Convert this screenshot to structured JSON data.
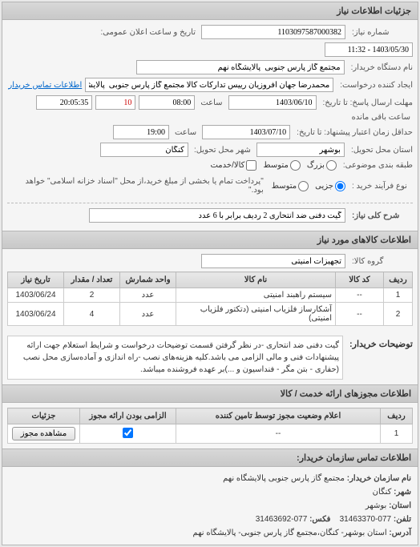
{
  "panel_title": "جزئیات اطلاعات نیاز",
  "form": {
    "req_no_label": "شماره نیاز:",
    "req_no": "1103097587000382",
    "datetime_label": "تاریخ و ساعت اعلان عمومی:",
    "datetime": "1403/05/30 - 11:32",
    "buyer_label": "نام دستگاه خریدار:",
    "buyer": "مجتمع گاز پارس جنوبی  پالایشگاه نهم",
    "creator_label": "ایجاد کننده درخواست:",
    "creator": "محمدرضا جهان افروزیان رییس تدارکات کالا مجتمع گاز پارس جنوبی  پالایشگاه نهم",
    "contact_link": "اطلاعات تماس خریدار",
    "deadline_label": "مهلت ارسال پاسخ: تا تاریخ:",
    "deadline_date": "1403/06/10",
    "time_label": "ساعت",
    "deadline_time": "08:00",
    "remain_days": "10",
    "remain_time": "20:05:35",
    "remain_label": "ساعت باقی مانده",
    "valid_label": "حداقل زمان اعتبار پیشنهاد: تا تاریخ:",
    "valid_date": "1403/07/10",
    "valid_time": "19:00",
    "province_label": "استان محل تحویل:",
    "province": "بوشهر",
    "city_label": "شهر محل تحویل:",
    "city": "کنگان",
    "budget_label": "طبقه بندی موضوعی:",
    "radio_large": "بزرگ",
    "radio_medium": "متوسط",
    "radio_service": "کالا/خدمت",
    "pay_label": "نوع فرآیند خرید :",
    "radio_g1": "جزیی",
    "radio_g2": "متوسط",
    "note_text": "\"پرداخت تمام یا بخشی از مبلغ خرید،از محل \"اسناد خزانه اسلامی\" خواهد بود.\""
  },
  "need": {
    "label": "شرح کلی نیاز:",
    "text": "گیت دفنی ضد انتحاری 2 ردیف برابر با 6 عدد"
  },
  "goods_header": "اطلاعات کالاهای مورد نیاز",
  "goods": {
    "group_label": "گروه کالا:",
    "group": "تجهیزات امنیتی",
    "columns": [
      "ردیف",
      "کد کالا",
      "نام کالا",
      "واحد شمارش",
      "تعداد / مقدار",
      "تاریخ نیاز"
    ],
    "rows": [
      [
        "1",
        "--",
        "سیستم راهبند امنیتی",
        "عدد",
        "2",
        "1403/06/24"
      ],
      [
        "2",
        "--",
        "آشکارساز فلزیاب امنیتی (دتکتور فلزیاب امنیتی)",
        "عدد",
        "4",
        "1403/06/24"
      ]
    ]
  },
  "description": {
    "label": "توضیحات خریدار:",
    "text": "گیت دفنی ضد انتحاری -در نظر گرفتن قسمت توضیحات درخواست و شرایط استعلام جهت ارائه پیشنهادات فنی و مالی الزامی می باشد.کلیه هزینه‌های نصب -راه اندازی و آماده‌سازی محل نصب (حفاری - بتن مگر -  فنداسیون و  ...)بر عهده فروشنده میباشد."
  },
  "license_header": "اطلاعات مجوزهای ارائه خدمت / کالا",
  "license": {
    "columns": [
      "ردیف",
      "اعلام وضعیت مجوز توسط تامین کننده",
      "الزامی بودن ارائه مجوز",
      "جزئیات"
    ],
    "row": [
      "1",
      "--",
      "",
      ""
    ],
    "btn": "مشاهده مجوز"
  },
  "contact_header": "اطلاعات تماس سازمان خریدار:",
  "contact": {
    "org_label": "نام سازمان خریدار:",
    "org": "مجتمع گاز پارس جنوبی پالایشگاه نهم",
    "city_label": "شهر:",
    "city": "کنگان",
    "province_label": "استان:",
    "province": "بوشهر",
    "phone_label": "تلفن:",
    "phone": "077-31463370",
    "fax_label": "فکس:",
    "fax": "077-31463692",
    "addr_label": "آدرس:",
    "addr": "استان بوشهر- کنگان،مجتمع گاز پارس جنوبی- پالایشگاه نهم"
  }
}
